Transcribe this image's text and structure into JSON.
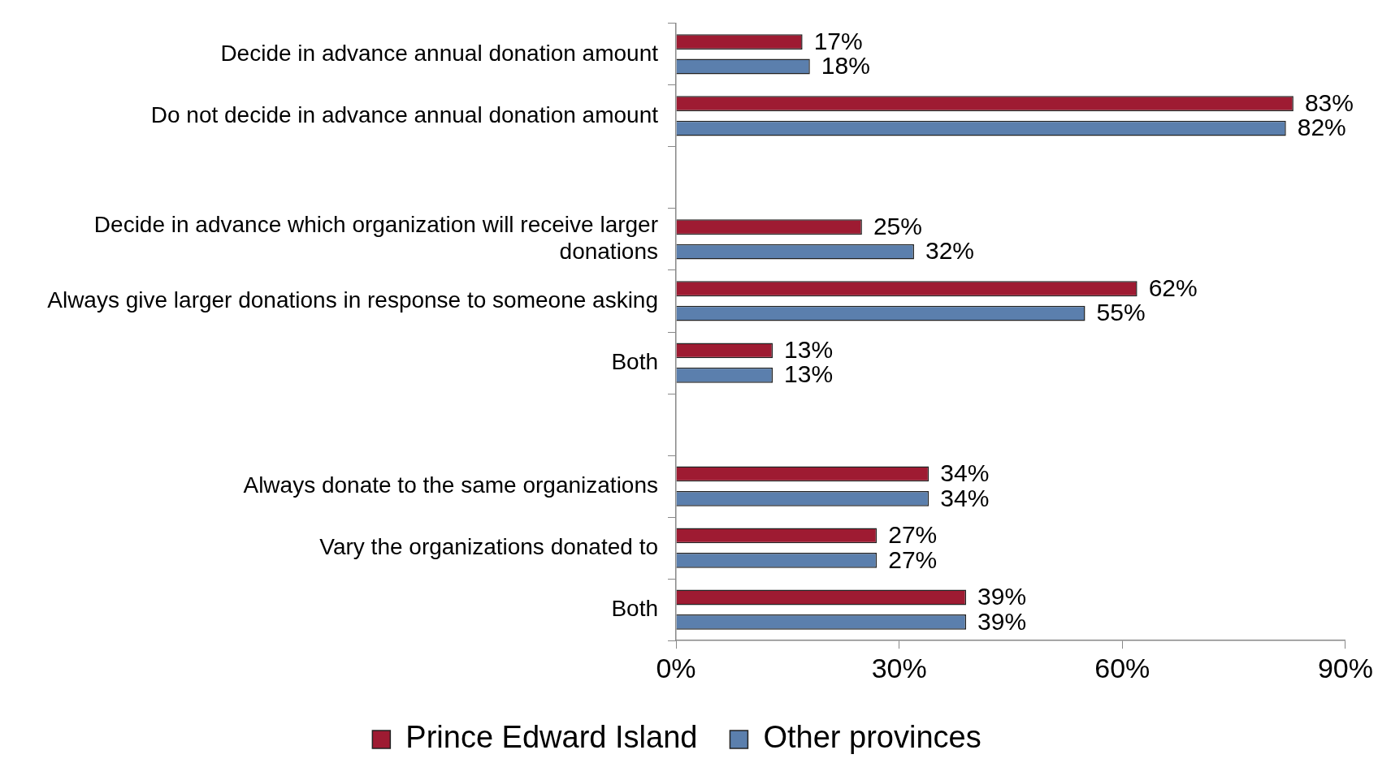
{
  "chart_data": {
    "type": "bar",
    "orientation": "horizontal",
    "categories": [
      "Decide in advance annual donation amount",
      "Do not decide in advance annual donation amount",
      null,
      "Decide in advance which organization will receive larger donations",
      "Always give larger donations in response to someone asking",
      "Both",
      null,
      "Always donate to the same organizations",
      "Vary the organizations donated to",
      "Both"
    ],
    "series": [
      {
        "name": "Prince Edward Island",
        "color": "#9e1b32",
        "values": [
          17,
          83,
          null,
          25,
          62,
          13,
          null,
          34,
          27,
          39
        ],
        "value_labels": [
          "17%",
          "83%",
          null,
          "25%",
          "62%",
          "13%",
          null,
          "34%",
          "27%",
          "39%"
        ]
      },
      {
        "name": "Other provinces",
        "color": "#5b7fad",
        "values": [
          18,
          82,
          null,
          32,
          55,
          13,
          null,
          34,
          27,
          39
        ],
        "value_labels": [
          "18%",
          "82%",
          null,
          "32%",
          "55%",
          "13%",
          null,
          "34%",
          "27%",
          "39%"
        ]
      }
    ],
    "xlim": [
      0,
      90
    ],
    "xticks": [
      {
        "value": 0,
        "label": "0%"
      },
      {
        "value": 30,
        "label": "30%"
      },
      {
        "value": 60,
        "label": "60%"
      },
      {
        "value": 90,
        "label": "90%"
      }
    ],
    "grid": false,
    "legend": "bottom"
  }
}
